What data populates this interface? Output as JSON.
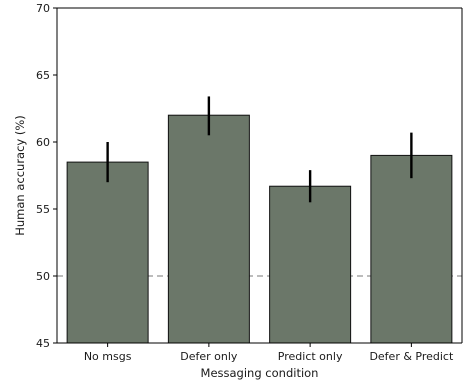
{
  "chart_data": {
    "type": "bar",
    "title": "",
    "xlabel": "Messaging condition",
    "ylabel": "Human accuracy (%)",
    "ylim": [
      45,
      70
    ],
    "yticks": [
      45,
      50,
      55,
      60,
      65,
      70
    ],
    "categories": [
      "No msgs",
      "Defer only",
      "Predict only",
      "Defer & Predict"
    ],
    "values": [
      58.5,
      62.0,
      56.7,
      59.0
    ],
    "error_low": [
      57.0,
      60.5,
      55.5,
      57.3
    ],
    "error_high": [
      60.0,
      63.4,
      57.9,
      60.7
    ],
    "reference_line": {
      "y": 50,
      "style": "dashed",
      "color": "#a6a6a6"
    },
    "bar_color": "#6b7769",
    "bar_edge_color": "#111111",
    "error_color": "#000000",
    "grid": false,
    "legend": "none"
  }
}
